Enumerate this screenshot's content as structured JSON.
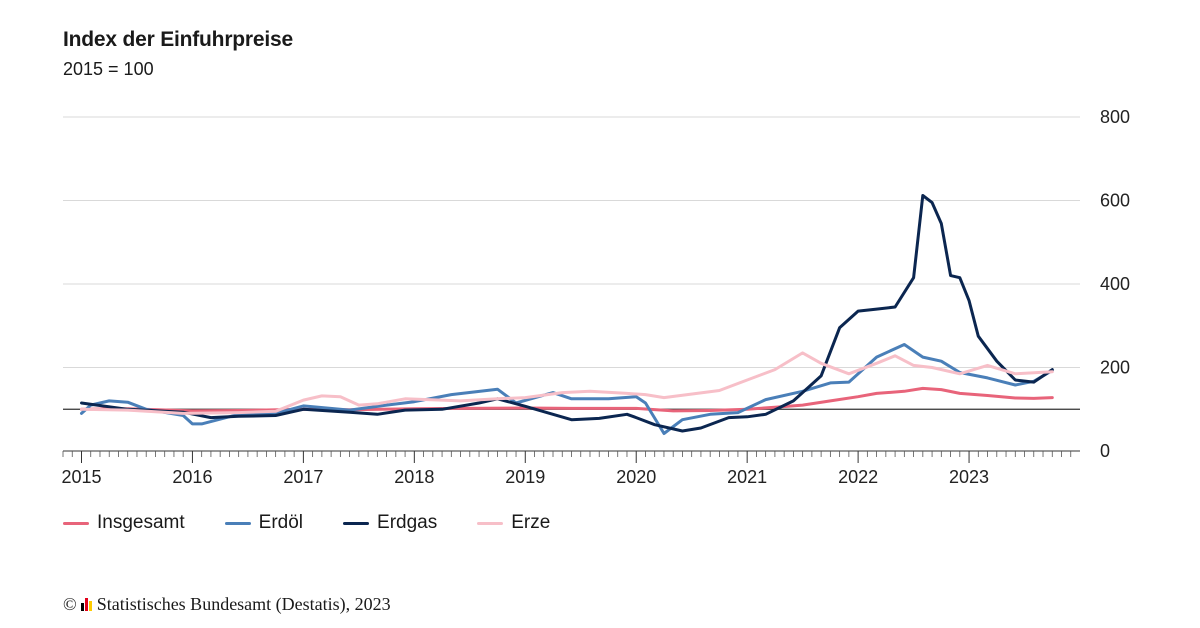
{
  "title": "Index der Einfuhrpreise",
  "subtitle": "2015 = 100",
  "source": {
    "copyright": "©",
    "text": "Statistisches Bundesamt (Destatis), 2023",
    "logo_colors": [
      "#000000",
      "#e2001a",
      "#ffcc00"
    ]
  },
  "chart_data": {
    "type": "line",
    "title": "Index der Einfuhrpreise",
    "subtitle": "2015 = 100",
    "xlabel": "",
    "ylabel": "",
    "x_start": "2015-01",
    "x_end": "2023-10",
    "xlim": [
      "2014-11",
      "2024-01"
    ],
    "ylim": [
      0,
      800
    ],
    "y_ticks": [
      0,
      200,
      400,
      600,
      800
    ],
    "y_tick_labels": [
      "0",
      "200",
      "400",
      "600",
      "800"
    ],
    "x_ticks": [
      "2015",
      "2016",
      "2017",
      "2018",
      "2019",
      "2020",
      "2021",
      "2022",
      "2023"
    ],
    "y_axis_side": "right",
    "reference_line": 100,
    "grid": true,
    "legend_position": "bottom-left",
    "series": [
      {
        "name": "Insgesamt",
        "color": "#e8647a",
        "points": [
          [
            "2015-01",
            100
          ],
          [
            "2015-06",
            101
          ],
          [
            "2016-01",
            96
          ],
          [
            "2016-06",
            97
          ],
          [
            "2017-01",
            100
          ],
          [
            "2017-06",
            99
          ],
          [
            "2018-01",
            101
          ],
          [
            "2018-06",
            102
          ],
          [
            "2019-01",
            103
          ],
          [
            "2019-06",
            102
          ],
          [
            "2020-01",
            102
          ],
          [
            "2020-05",
            96
          ],
          [
            "2020-09",
            97
          ],
          [
            "2021-01",
            100
          ],
          [
            "2021-04",
            105
          ],
          [
            "2021-07",
            110
          ],
          [
            "2021-10",
            120
          ],
          [
            "2022-01",
            130
          ],
          [
            "2022-03",
            138
          ],
          [
            "2022-06",
            143
          ],
          [
            "2022-08",
            150
          ],
          [
            "2022-10",
            147
          ],
          [
            "2022-12",
            138
          ],
          [
            "2023-03",
            133
          ],
          [
            "2023-06",
            127
          ],
          [
            "2023-08",
            126
          ],
          [
            "2023-10",
            128
          ]
        ]
      },
      {
        "name": "Erdöl",
        "color": "#4a7fb8",
        "points": [
          [
            "2015-01",
            90
          ],
          [
            "2015-02",
            110
          ],
          [
            "2015-04",
            120
          ],
          [
            "2015-06",
            117
          ],
          [
            "2015-08",
            100
          ],
          [
            "2015-12",
            85
          ],
          [
            "2016-01",
            65
          ],
          [
            "2016-02",
            65
          ],
          [
            "2016-06",
            88
          ],
          [
            "2016-10",
            90
          ],
          [
            "2017-01",
            108
          ],
          [
            "2017-06",
            98
          ],
          [
            "2017-10",
            110
          ],
          [
            "2018-01",
            118
          ],
          [
            "2018-05",
            135
          ],
          [
            "2018-10",
            148
          ],
          [
            "2018-12",
            115
          ],
          [
            "2019-04",
            140
          ],
          [
            "2019-06",
            125
          ],
          [
            "2019-10",
            125
          ],
          [
            "2020-01",
            130
          ],
          [
            "2020-02",
            115
          ],
          [
            "2020-04",
            42
          ],
          [
            "2020-06",
            75
          ],
          [
            "2020-09",
            88
          ],
          [
            "2020-12",
            92
          ],
          [
            "2021-03",
            123
          ],
          [
            "2021-07",
            143
          ],
          [
            "2021-10",
            163
          ],
          [
            "2021-12",
            165
          ],
          [
            "2022-03",
            225
          ],
          [
            "2022-06",
            255
          ],
          [
            "2022-08",
            225
          ],
          [
            "2022-10",
            215
          ],
          [
            "2022-12",
            188
          ],
          [
            "2023-03",
            175
          ],
          [
            "2023-06",
            158
          ],
          [
            "2023-08",
            167
          ],
          [
            "2023-10",
            193
          ]
        ]
      },
      {
        "name": "Erdgas",
        "color": "#0b2650",
        "points": [
          [
            "2015-01",
            115
          ],
          [
            "2015-06",
            100
          ],
          [
            "2015-12",
            93
          ],
          [
            "2016-03",
            80
          ],
          [
            "2016-06",
            83
          ],
          [
            "2016-10",
            85
          ],
          [
            "2017-01",
            100
          ],
          [
            "2017-06",
            93
          ],
          [
            "2017-09",
            88
          ],
          [
            "2017-12",
            98
          ],
          [
            "2018-04",
            100
          ],
          [
            "2018-08",
            115
          ],
          [
            "2018-10",
            125
          ],
          [
            "2019-01",
            107
          ],
          [
            "2019-06",
            75
          ],
          [
            "2019-09",
            78
          ],
          [
            "2019-12",
            88
          ],
          [
            "2020-01",
            80
          ],
          [
            "2020-03",
            63
          ],
          [
            "2020-06",
            48
          ],
          [
            "2020-08",
            55
          ],
          [
            "2020-11",
            80
          ],
          [
            "2021-01",
            82
          ],
          [
            "2021-03",
            88
          ],
          [
            "2021-06",
            120
          ],
          [
            "2021-09",
            180
          ],
          [
            "2021-11",
            295
          ],
          [
            "2022-01",
            335
          ],
          [
            "2022-03",
            340
          ],
          [
            "2022-05",
            345
          ],
          [
            "2022-07",
            415
          ],
          [
            "2022-08",
            612
          ],
          [
            "2022-09",
            595
          ],
          [
            "2022-10",
            545
          ],
          [
            "2022-11",
            420
          ],
          [
            "2022-12",
            415
          ],
          [
            "2023-01",
            360
          ],
          [
            "2023-02",
            275
          ],
          [
            "2023-04",
            215
          ],
          [
            "2023-06",
            170
          ],
          [
            "2023-08",
            165
          ],
          [
            "2023-10",
            195
          ]
        ]
      },
      {
        "name": "Erze",
        "color": "#f7bfc8",
        "points": [
          [
            "2015-01",
            100
          ],
          [
            "2015-06",
            98
          ],
          [
            "2015-12",
            90
          ],
          [
            "2016-06",
            92
          ],
          [
            "2016-10",
            95
          ],
          [
            "2017-01",
            122
          ],
          [
            "2017-03",
            132
          ],
          [
            "2017-05",
            130
          ],
          [
            "2017-07",
            110
          ],
          [
            "2017-09",
            113
          ],
          [
            "2017-12",
            125
          ],
          [
            "2018-06",
            120
          ],
          [
            "2018-10",
            125
          ],
          [
            "2019-01",
            128
          ],
          [
            "2019-05",
            140
          ],
          [
            "2019-08",
            143
          ],
          [
            "2019-12",
            138
          ],
          [
            "2020-02",
            135
          ],
          [
            "2020-04",
            128
          ],
          [
            "2020-10",
            145
          ],
          [
            "2021-01",
            170
          ],
          [
            "2021-04",
            195
          ],
          [
            "2021-07",
            235
          ],
          [
            "2021-09",
            210
          ],
          [
            "2021-12",
            185
          ],
          [
            "2022-03",
            210
          ],
          [
            "2022-05",
            228
          ],
          [
            "2022-07",
            205
          ],
          [
            "2022-09",
            200
          ],
          [
            "2022-12",
            185
          ],
          [
            "2023-03",
            205
          ],
          [
            "2023-06",
            185
          ],
          [
            "2023-10",
            190
          ]
        ]
      }
    ]
  }
}
